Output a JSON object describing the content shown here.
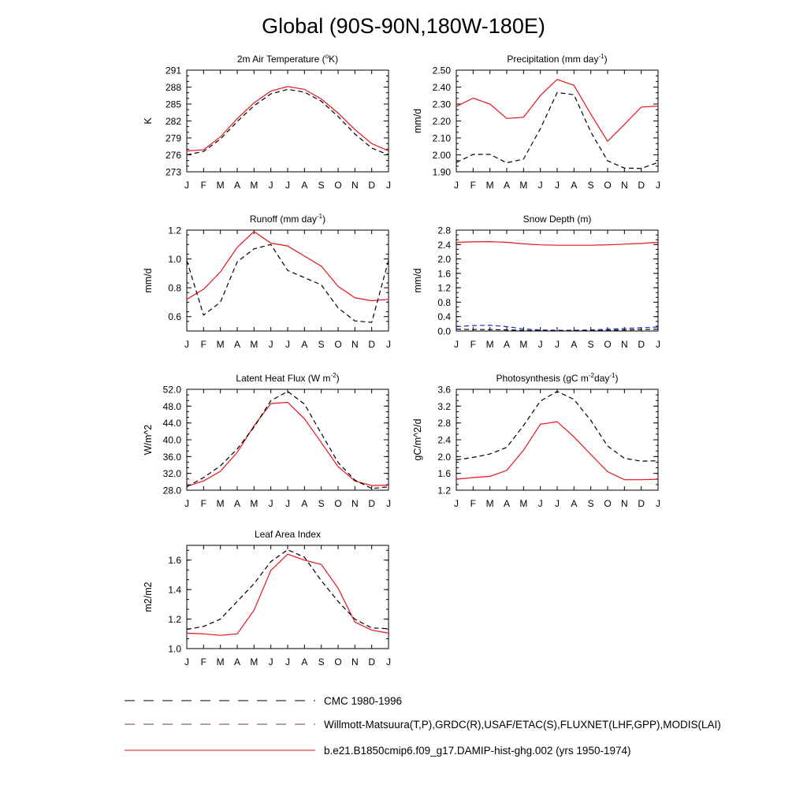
{
  "title": "Global (90S-90N,180W-180E)",
  "months": [
    "J",
    "F",
    "M",
    "A",
    "M",
    "J",
    "J",
    "A",
    "S",
    "O",
    "N",
    "D",
    "J"
  ],
  "colors": {
    "model": "#e8141e",
    "obs": "#000000",
    "obs2": "#1f2ad6"
  },
  "legend": {
    "cmc": "CMC 1980-1996",
    "obs": "Willmott-Matsuura(T,P),GRDC(R),USAF/ETAC(S),FLUXNET(LHF,GPP),MODIS(LAI)",
    "model": "b.e21.B1850cmip6.f09_g17.DAMIP-hist-ghg.002 (yrs 1950-1974)"
  },
  "chart_data": [
    {
      "type": "line",
      "title": "2m Air Temperature (",
      "title_sup": "o",
      "title_tail": "K)",
      "ylabel": "K",
      "ylim": [
        273,
        291
      ],
      "yticks": [
        "291",
        "288",
        "285",
        "282",
        "279",
        "276",
        "273"
      ],
      "yvals": [
        291,
        288,
        285,
        282,
        279,
        276,
        273
      ],
      "series": [
        {
          "role": "model",
          "values": [
            276.7,
            276.9,
            279.2,
            282.4,
            285.2,
            287.3,
            288.1,
            287.6,
            285.9,
            283.4,
            280.5,
            278.0,
            276.7
          ]
        },
        {
          "role": "obs",
          "values": [
            276.0,
            276.6,
            278.8,
            281.9,
            284.7,
            286.8,
            287.6,
            287.1,
            285.5,
            282.8,
            279.7,
            277.2,
            276.0
          ]
        }
      ]
    },
    {
      "type": "line",
      "title": "Precipitation (mm day",
      "title_sup": "-1",
      "title_tail": ")",
      "ylabel": "mm/d",
      "ylim": [
        1.9,
        2.5
      ],
      "yticks": [
        "2.50",
        "2.40",
        "2.30",
        "2.20",
        "2.10",
        "2.00",
        "1.90"
      ],
      "yvals": [
        2.5,
        2.4,
        2.3,
        2.2,
        2.1,
        2.0,
        1.9
      ],
      "series": [
        {
          "role": "model",
          "values": [
            2.285,
            2.335,
            2.3,
            2.215,
            2.222,
            2.35,
            2.445,
            2.41,
            2.24,
            2.08,
            2.18,
            2.282,
            2.288
          ]
        },
        {
          "role": "obs",
          "values": [
            1.955,
            2.003,
            2.003,
            1.953,
            1.975,
            2.155,
            2.368,
            2.355,
            2.135,
            1.965,
            1.922,
            1.92,
            1.955
          ]
        }
      ]
    },
    {
      "type": "line",
      "title": "Runoff (mm day",
      "title_sup": "-1",
      "title_tail": ")",
      "ylabel": "mm/d",
      "ylim": [
        0.5,
        1.2
      ],
      "yticks": [
        "1.2",
        "1.0",
        "0.8",
        "0.6"
      ],
      "yvals": [
        1.2,
        1.0,
        0.8,
        0.6
      ],
      "series": [
        {
          "role": "model",
          "values": [
            0.72,
            0.79,
            0.91,
            1.08,
            1.19,
            1.11,
            1.09,
            1.02,
            0.95,
            0.81,
            0.73,
            0.71,
            0.72
          ]
        },
        {
          "role": "obs",
          "values": [
            0.99,
            0.61,
            0.7,
            0.98,
            1.07,
            1.1,
            0.92,
            0.87,
            0.82,
            0.66,
            0.57,
            0.56,
            0.99
          ]
        }
      ]
    },
    {
      "type": "line",
      "title": "Snow Depth (m)",
      "title_sup": "",
      "title_tail": "",
      "ylabel": "mm/d",
      "ylim": [
        0,
        2.8
      ],
      "yticks": [
        "2.8",
        "2.4",
        "2.0",
        "1.6",
        "1.2",
        "0.8",
        "0.4",
        "0.0"
      ],
      "yvals": [
        2.8,
        2.4,
        2.0,
        1.6,
        1.2,
        0.8,
        0.4,
        0.0
      ],
      "series": [
        {
          "role": "model",
          "values": [
            2.46,
            2.475,
            2.48,
            2.46,
            2.42,
            2.39,
            2.38,
            2.38,
            2.38,
            2.39,
            2.41,
            2.43,
            2.46
          ]
        },
        {
          "role": "obs2",
          "values": [
            0.12,
            0.15,
            0.16,
            0.12,
            0.06,
            0.03,
            0.02,
            0.02,
            0.03,
            0.05,
            0.07,
            0.09,
            0.11
          ]
        },
        {
          "role": "obs",
          "values": [
            0.05,
            0.04,
            0.04,
            0.03,
            0.02,
            0.01,
            0.01,
            0.01,
            0.01,
            0.02,
            0.03,
            0.04,
            0.05
          ]
        }
      ]
    },
    {
      "type": "line",
      "title": "Latent Heat Flux (W m",
      "title_sup": "-2",
      "title_tail": ")",
      "ylabel": "W/m^2",
      "ylim": [
        28,
        52
      ],
      "yticks": [
        "52.0",
        "48.0",
        "44.0",
        "40.0",
        "36.0",
        "32.0",
        "28.0"
      ],
      "yvals": [
        52,
        48,
        44,
        40,
        36,
        32,
        28
      ],
      "series": [
        {
          "role": "model",
          "values": [
            28.9,
            30.2,
            32.5,
            37.0,
            43.3,
            48.6,
            48.9,
            45.0,
            39.3,
            33.6,
            30.2,
            29.1,
            29.2
          ]
        },
        {
          "role": "obs",
          "values": [
            28.8,
            31.0,
            33.8,
            37.8,
            43.0,
            49.3,
            51.5,
            48.5,
            41.5,
            34.6,
            30.4,
            28.4,
            28.8
          ]
        }
      ]
    },
    {
      "type": "line",
      "title": "Photosynthesis (gC m",
      "title_sup": "-2",
      "title_tail": "day",
      "title_sup2": "-1",
      "title_tail2": ")",
      "ylabel": "gC/m^2/d",
      "ylim": [
        1.2,
        3.6
      ],
      "yticks": [
        "3.6",
        "3.2",
        "2.8",
        "2.4",
        "2.0",
        "1.6",
        "1.2"
      ],
      "yvals": [
        3.6,
        3.2,
        2.8,
        2.4,
        2.0,
        1.6,
        1.2
      ],
      "series": [
        {
          "role": "model",
          "values": [
            1.46,
            1.5,
            1.53,
            1.67,
            2.15,
            2.77,
            2.83,
            2.47,
            2.05,
            1.64,
            1.45,
            1.45,
            1.46
          ]
        },
        {
          "role": "obs",
          "values": [
            1.92,
            1.98,
            2.06,
            2.22,
            2.74,
            3.32,
            3.55,
            3.36,
            2.86,
            2.25,
            1.96,
            1.89,
            1.9
          ]
        }
      ]
    },
    {
      "type": "line",
      "title": "Leaf Area Index",
      "title_sup": "",
      "title_tail": "",
      "ylabel": "m2/m2",
      "ylim": [
        1.0,
        1.7
      ],
      "yticks": [
        "1.6",
        "1.4",
        "1.2",
        "1.0"
      ],
      "yvals": [
        1.6,
        1.4,
        1.2,
        1.0
      ],
      "series": [
        {
          "role": "model",
          "values": [
            1.105,
            1.1,
            1.09,
            1.1,
            1.26,
            1.53,
            1.64,
            1.6,
            1.57,
            1.41,
            1.18,
            1.125,
            1.105
          ]
        },
        {
          "role": "obs",
          "values": [
            1.13,
            1.15,
            1.2,
            1.32,
            1.44,
            1.59,
            1.67,
            1.62,
            1.46,
            1.32,
            1.2,
            1.14,
            1.135
          ]
        }
      ]
    }
  ]
}
